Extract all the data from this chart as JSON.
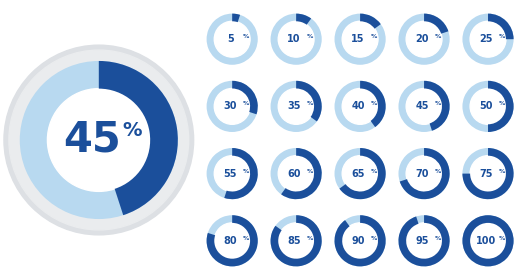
{
  "main_percent": 45,
  "small_percents": [
    5,
    10,
    15,
    20,
    25,
    30,
    35,
    40,
    45,
    50,
    55,
    60,
    65,
    70,
    75,
    80,
    85,
    90,
    95,
    100
  ],
  "dark_blue": "#1b4f9b",
  "light_blue": "#b8d9f0",
  "bg_color": "#ffffff",
  "text_color": "#1b4f9b",
  "outer_gray1": "#dde0e4",
  "outer_gray2": "#eaecee",
  "grid_rows": 4,
  "grid_cols": 5,
  "main_fontsize": 30,
  "main_pct_fontsize": 14,
  "small_fontsize": 7.0,
  "small_pct_fontsize": 4.5
}
